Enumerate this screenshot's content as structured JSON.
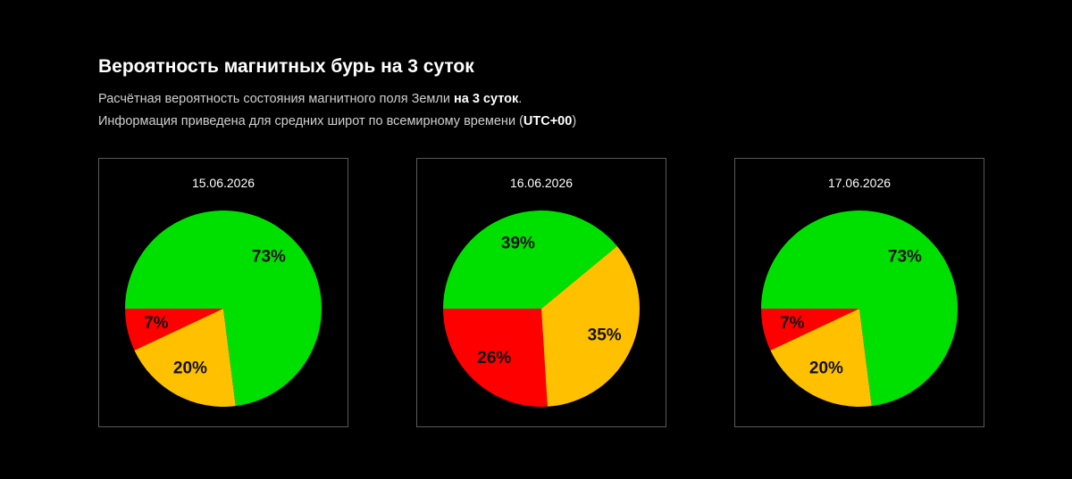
{
  "header": {
    "title": "Вероятность магнитных бурь на 3 суток",
    "line1": [
      "Расчётная вероятность состояния магнитного поля Земли ",
      "на 3 суток",
      "."
    ],
    "line2": [
      "Информация приведена для средних широт по всемирному времени (",
      "UTC+00",
      ")"
    ]
  },
  "chart_data": [
    {
      "type": "pie",
      "title": "15.06.2026",
      "values": [
        7,
        20,
        73
      ],
      "value_labels": [
        "7%",
        "20%",
        "73%"
      ],
      "colors": [
        "#ff0000",
        "#ffc000",
        "#00e000"
      ]
    },
    {
      "type": "pie",
      "title": "16.06.2026",
      "values": [
        26,
        35,
        39
      ],
      "value_labels": [
        "26%",
        "35%",
        "39%"
      ],
      "colors": [
        "#ff0000",
        "#ffc000",
        "#00e000"
      ]
    },
    {
      "type": "pie",
      "title": "17.06.2026",
      "values": [
        7,
        20,
        73
      ],
      "value_labels": [
        "7%",
        "20%",
        "73%"
      ],
      "colors": [
        "#ff0000",
        "#ffc000",
        "#00e000"
      ]
    }
  ]
}
